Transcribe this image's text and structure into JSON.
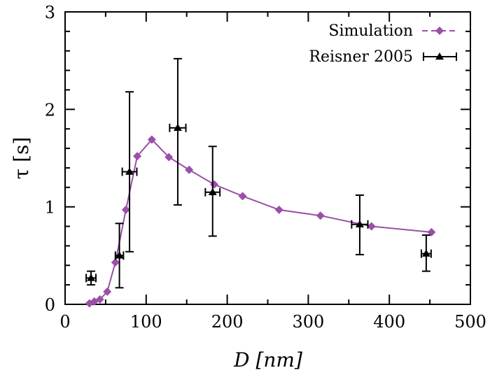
{
  "chart_data": {
    "type": "scatter",
    "title": "",
    "xlabel": "D [nm]",
    "ylabel": "τ [s]",
    "xlim": [
      0,
      500
    ],
    "ylim": [
      0,
      3
    ],
    "xticks": [
      0,
      100,
      200,
      300,
      400,
      500
    ],
    "yticks": [
      0,
      1,
      2,
      3
    ],
    "grid": false,
    "legend_position": "top-right",
    "series": [
      {
        "name": "Simulation",
        "style": "line with diamond markers",
        "color": "#9b4fa8",
        "x": [
          30,
          36,
          43,
          52,
          62,
          75,
          89,
          107,
          128,
          153,
          184,
          219,
          264,
          315,
          378,
          452
        ],
        "y": [
          0.01,
          0.03,
          0.05,
          0.13,
          0.43,
          0.97,
          1.52,
          1.69,
          1.51,
          1.38,
          1.23,
          1.11,
          0.97,
          0.91,
          0.8,
          0.74
        ]
      },
      {
        "name": "Reisner 2005",
        "style": "triangle markers with x and y error bars",
        "color": "#000000",
        "x": [
          32,
          67,
          79.5,
          139,
          182,
          363.5,
          445.5
        ],
        "y": [
          0.27,
          0.5,
          1.36,
          1.81,
          1.15,
          0.82,
          0.52
        ],
        "x_err": [
          6,
          5,
          9,
          10,
          9,
          10,
          6
        ],
        "y_low": [
          0.2,
          0.17,
          0.54,
          1.02,
          0.7,
          0.51,
          0.34
        ],
        "y_high": [
          0.34,
          0.83,
          2.18,
          2.52,
          1.62,
          1.12,
          0.71
        ]
      }
    ]
  }
}
